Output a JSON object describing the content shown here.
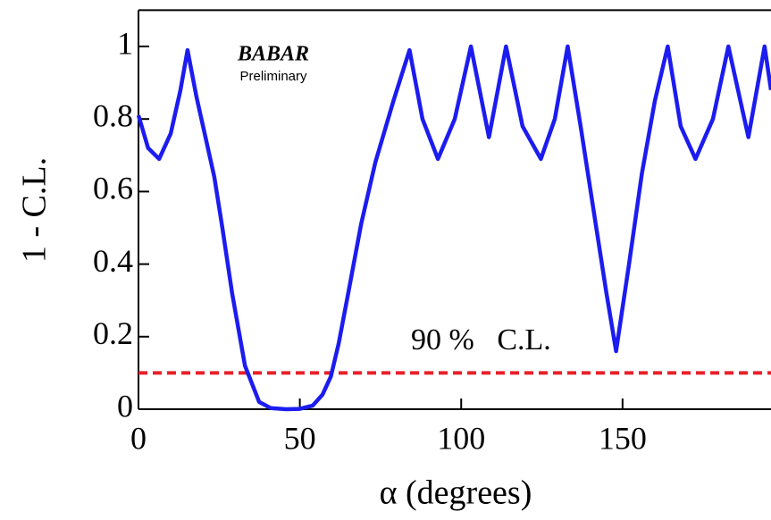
{
  "chart_data": {
    "type": "line",
    "x_label": "α (degrees)",
    "y_label": "1 - C.L.",
    "logo": "BABAR",
    "logo_subtitle": "Preliminary",
    "annotation": "90 %   C.L.",
    "x": [
      0,
      3,
      6.4,
      10,
      13,
      15.2,
      18,
      21,
      23.5,
      26,
      29,
      33,
      37.4,
      41,
      45.7,
      50,
      54,
      57,
      59.6,
      62,
      65,
      69,
      73.4,
      79,
      84,
      88,
      92.8,
      98,
      103,
      108.6,
      113.9,
      119,
      124.7,
      129,
      133,
      137,
      141,
      145,
      148,
      152,
      156,
      160,
      164,
      168,
      172.6,
      178,
      182.8,
      189,
      194,
      196
    ],
    "values": [
      0.81,
      0.72,
      0.69,
      0.76,
      0.88,
      0.99,
      0.86,
      0.74,
      0.64,
      0.5,
      0.32,
      0.12,
      0.02,
      0.003,
      0,
      0.001,
      0.01,
      0.04,
      0.09,
      0.18,
      0.32,
      0.51,
      0.68,
      0.85,
      0.99,
      0.8,
      0.69,
      0.8,
      1.0,
      0.75,
      1.0,
      0.78,
      0.69,
      0.8,
      1.0,
      0.78,
      0.55,
      0.32,
      0.16,
      0.4,
      0.65,
      0.85,
      1.0,
      0.78,
      0.69,
      0.8,
      1.0,
      0.75,
      1.0,
      0.88
    ],
    "color": "#1c1cf0",
    "reference_line": {
      "y": 0.1,
      "color": "#e8202a"
    },
    "xlim": [
      0,
      196
    ],
    "ylim": [
      0,
      1.1
    ],
    "xticks": [
      0,
      50,
      100,
      150
    ],
    "yticks": [
      0,
      0.2,
      0.4,
      0.6,
      0.8,
      1
    ]
  }
}
